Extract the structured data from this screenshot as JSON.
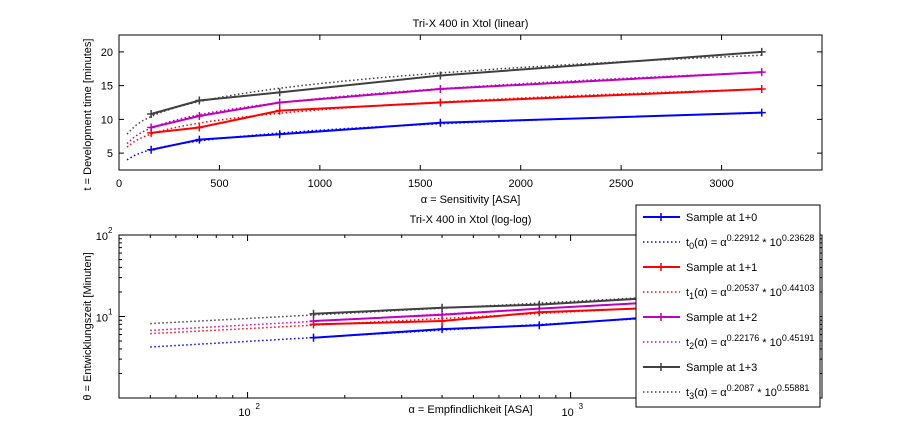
{
  "chart_data": [
    {
      "type": "line",
      "title": "Tri-X 400 in Xtol (linear)",
      "xlabel": "α = Sensitivity [ASA]",
      "ylabel": "t = Development time [minutes]",
      "xlim": [
        0,
        3500
      ],
      "ylim": [
        2.5,
        22.5
      ],
      "xscale": "linear",
      "yscale": "linear",
      "x_ticks": [
        0,
        500,
        1000,
        1500,
        2000,
        2500,
        3000
      ],
      "y_ticks": [
        5,
        10,
        15,
        20
      ],
      "x_tick_labels": [
        "0",
        "500",
        "1000",
        "1500",
        "2000",
        "2500",
        "3000"
      ],
      "y_tick_labels": [
        "5",
        "10",
        "15",
        "20"
      ],
      "grid": false,
      "x_samples": [
        160,
        400,
        800,
        1600,
        3200
      ],
      "series": [
        {
          "values": [
            5.5,
            7.0,
            7.8,
            9.5,
            11.0
          ],
          "color": "#0000ff",
          "fit_base": 1.7238,
          "fit_exp": 0.22912
        },
        {
          "values": [
            8.0,
            8.8,
            11.3,
            12.5,
            14.5
          ],
          "color": "#ff0000",
          "fit_base": 2.7627,
          "fit_exp": 0.20537
        },
        {
          "values": [
            8.8,
            10.5,
            12.5,
            14.5,
            17.0
          ],
          "color": "#c000c0",
          "fit_base": 2.8322,
          "fit_exp": 0.22176
        },
        {
          "values": [
            10.8,
            12.8,
            14.0,
            16.5,
            20.0
          ],
          "color": "#404040",
          "fit_base": 3.6192,
          "fit_exp": 0.2087
        }
      ]
    },
    {
      "type": "line",
      "title": "Tri-X 400 in Xtol (log-log)",
      "xlabel": "α = Empfindlichkeit [ASA]",
      "ylabel": "θ = Entwicklungszeit [Minuten]",
      "xscale": "log",
      "yscale": "log",
      "xlim": [
        40,
        6000
      ],
      "ylim": [
        1,
        100
      ],
      "x_ticks": [
        100,
        1000
      ],
      "y_ticks": [
        10,
        100
      ],
      "grid": false,
      "fit_x_range": [
        50,
        3200
      ],
      "legend_placement": "right",
      "legend": [
        {
          "sample_label": "Sample at 1+0",
          "fit_prefix": "t",
          "fit_sub": "0",
          "fit_mid": "(α) = α",
          "fit_exp": "0.22912",
          "fit_times": " * 10",
          "fit_exp10": "0.23628"
        },
        {
          "sample_label": "Sample at 1+1",
          "fit_prefix": "t",
          "fit_sub": "1",
          "fit_mid": "(α) = α",
          "fit_exp": "0.20537",
          "fit_times": " * 10",
          "fit_exp10": "0.44103"
        },
        {
          "sample_label": "Sample at 1+2",
          "fit_prefix": "t",
          "fit_sub": "2",
          "fit_mid": "(α) = α",
          "fit_exp": "0.22176",
          "fit_times": " * 10",
          "fit_exp10": "0.45191"
        },
        {
          "sample_label": "Sample at 1+3",
          "fit_prefix": "t",
          "fit_sub": "3",
          "fit_mid": "(α) = α",
          "fit_exp": "0.2087",
          "fit_times": " * 10",
          "fit_exp10": "0.55881"
        }
      ]
    }
  ]
}
